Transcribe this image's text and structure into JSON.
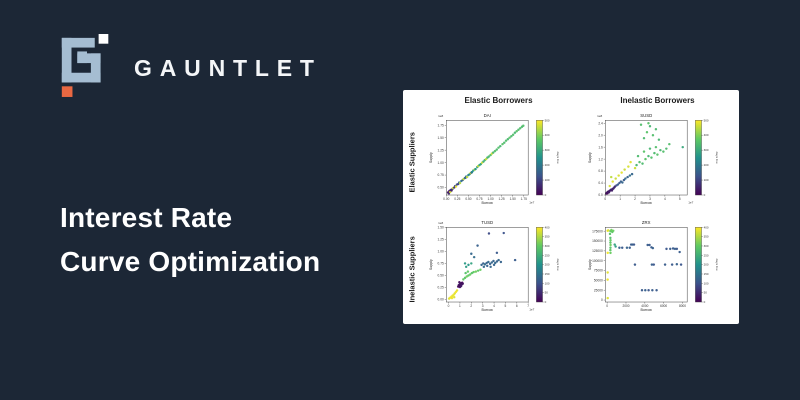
{
  "brand": {
    "name": "GAUNTLET",
    "logo_colors": {
      "mark": "#A5BDD2",
      "dot": "#FFFFFF",
      "accent": "#E96842"
    }
  },
  "title": {
    "line1": "Interest Rate",
    "line2": "Curve Optimization"
  },
  "theme": {
    "background": "#1C2736",
    "panel": "#FFFFFF",
    "text": "#FFFFFF"
  },
  "figure": {
    "col_headers": [
      "Elastic Borrowers",
      "Inelastic Borrowers"
    ],
    "row_headers": [
      "Elastic Suppliers",
      "Inelastic Suppliers"
    ]
  },
  "chart_data": [
    {
      "id": "dai",
      "type": "scatter",
      "title": "DAI",
      "row": "Elastic Suppliers",
      "col": "Elastic Borrowers",
      "xlabel": "Borrow",
      "ylabel": "Supply",
      "x_offset_label": "1e7",
      "y_offset_label": "1e8",
      "xlim": [
        0,
        1.85
      ],
      "ylim": [
        0.35,
        1.85
      ],
      "xticks": [
        "0.00",
        "0.25",
        "0.50",
        "0.75",
        "1.00",
        "1.25",
        "1.50",
        "1.75"
      ],
      "yticks": [
        "0.50",
        "0.75",
        "1.00",
        "1.25",
        "1.50",
        "1.75"
      ],
      "colorbar": {
        "label": "days live",
        "range": [
          0,
          500
        ],
        "ticks": [
          "0",
          "100",
          "200",
          "300",
          "400",
          "500"
        ]
      },
      "points": [
        [
          0.04,
          0.4,
          30
        ],
        [
          0.06,
          0.38,
          60
        ],
        [
          0.07,
          0.43,
          20
        ],
        [
          0.09,
          0.41,
          470
        ],
        [
          0.1,
          0.45,
          80
        ],
        [
          0.12,
          0.44,
          40
        ],
        [
          0.14,
          0.47,
          90
        ],
        [
          0.15,
          0.49,
          460
        ],
        [
          0.18,
          0.5,
          70
        ],
        [
          0.2,
          0.53,
          100
        ],
        [
          0.22,
          0.52,
          480
        ],
        [
          0.24,
          0.56,
          120
        ],
        [
          0.27,
          0.57,
          90
        ],
        [
          0.29,
          0.6,
          160
        ],
        [
          0.31,
          0.59,
          440
        ],
        [
          0.34,
          0.63,
          180
        ],
        [
          0.37,
          0.65,
          150
        ],
        [
          0.39,
          0.67,
          460
        ],
        [
          0.42,
          0.69,
          200
        ],
        [
          0.44,
          0.7,
          120
        ],
        [
          0.45,
          0.72,
          170
        ],
        [
          0.47,
          0.71,
          450
        ],
        [
          0.5,
          0.75,
          220
        ],
        [
          0.53,
          0.77,
          240
        ],
        [
          0.55,
          0.79,
          470
        ],
        [
          0.57,
          0.8,
          140
        ],
        [
          0.58,
          0.81,
          230
        ],
        [
          0.61,
          0.84,
          260
        ],
        [
          0.64,
          0.86,
          450
        ],
        [
          0.66,
          0.87,
          250
        ],
        [
          0.7,
          0.91,
          280
        ],
        [
          0.72,
          0.93,
          460
        ],
        [
          0.75,
          0.95,
          300
        ],
        [
          0.78,
          0.97,
          290
        ],
        [
          0.81,
          1.0,
          470
        ],
        [
          0.84,
          1.02,
          310
        ],
        [
          0.87,
          1.05,
          330
        ],
        [
          0.9,
          1.07,
          460
        ],
        [
          0.93,
          1.1,
          320
        ],
        [
          0.96,
          1.12,
          340
        ],
        [
          1.0,
          1.15,
          350
        ],
        [
          1.03,
          1.18,
          460
        ],
        [
          1.06,
          1.2,
          330
        ],
        [
          1.1,
          1.23,
          360
        ],
        [
          1.14,
          1.26,
          340
        ],
        [
          1.18,
          1.3,
          350
        ],
        [
          1.22,
          1.33,
          330
        ],
        [
          1.27,
          1.37,
          360
        ],
        [
          1.31,
          1.4,
          340
        ],
        [
          1.35,
          1.44,
          350
        ],
        [
          1.39,
          1.47,
          330
        ],
        [
          1.43,
          1.5,
          360
        ],
        [
          1.47,
          1.53,
          340
        ],
        [
          1.51,
          1.56,
          350
        ],
        [
          1.55,
          1.6,
          330
        ],
        [
          1.59,
          1.63,
          360
        ],
        [
          1.63,
          1.66,
          340
        ],
        [
          1.67,
          1.69,
          350
        ],
        [
          1.71,
          1.72,
          340
        ],
        [
          1.74,
          1.74,
          350
        ]
      ]
    },
    {
      "id": "susd",
      "type": "scatter",
      "title": "SUSD",
      "row": "Elastic Suppliers",
      "col": "Inelastic Borrowers",
      "xlabel": "Borrow",
      "ylabel": "Supply",
      "x_offset_label": "1e7",
      "y_offset_label": "1e8",
      "xlim": [
        0,
        5.5
      ],
      "ylim": [
        0,
        2.5
      ],
      "xticks": [
        "0",
        "1",
        "2",
        "3",
        "4",
        "5"
      ],
      "yticks": [
        "0.0",
        "0.4",
        "0.8",
        "1.2",
        "1.6",
        "2.0",
        "2.4"
      ],
      "colorbar": {
        "label": "days live",
        "range": [
          0,
          500
        ],
        "ticks": [
          "0",
          "100",
          "200",
          "300",
          "400",
          "500"
        ]
      },
      "points": [
        [
          0.08,
          0.05,
          20
        ],
        [
          0.12,
          0.08,
          30
        ],
        [
          0.15,
          0.06,
          15
        ],
        [
          0.18,
          0.1,
          40
        ],
        [
          0.22,
          0.12,
          25
        ],
        [
          0.25,
          0.09,
          35
        ],
        [
          0.3,
          0.14,
          50
        ],
        [
          0.35,
          0.16,
          30
        ],
        [
          0.4,
          0.18,
          60
        ],
        [
          0.45,
          0.15,
          40
        ],
        [
          0.5,
          0.2,
          55
        ],
        [
          0.55,
          0.22,
          45
        ],
        [
          0.6,
          0.25,
          70
        ],
        [
          0.65,
          0.28,
          60
        ],
        [
          0.75,
          0.32,
          120
        ],
        [
          0.85,
          0.35,
          140
        ],
        [
          0.95,
          0.4,
          130
        ],
        [
          1.05,
          0.45,
          150
        ],
        [
          1.15,
          0.42,
          160
        ],
        [
          1.25,
          0.5,
          140
        ],
        [
          1.35,
          0.55,
          170
        ],
        [
          1.5,
          0.6,
          150
        ],
        [
          1.65,
          0.65,
          180
        ],
        [
          1.8,
          0.7,
          160
        ],
        [
          0.3,
          0.3,
          470
        ],
        [
          0.5,
          0.45,
          480
        ],
        [
          0.7,
          0.55,
          460
        ],
        [
          0.9,
          0.65,
          470
        ],
        [
          1.1,
          0.75,
          480
        ],
        [
          1.3,
          0.85,
          460
        ],
        [
          1.55,
          0.95,
          470
        ],
        [
          0.4,
          0.6,
          450
        ],
        [
          1.7,
          1.1,
          480
        ],
        [
          2.0,
          0.9,
          460
        ],
        [
          2.1,
          1.0,
          330
        ],
        [
          2.3,
          1.1,
          350
        ],
        [
          2.5,
          1.05,
          340
        ],
        [
          2.7,
          1.2,
          360
        ],
        [
          2.9,
          1.3,
          330
        ],
        [
          3.1,
          1.25,
          350
        ],
        [
          3.3,
          1.4,
          340
        ],
        [
          3.5,
          1.35,
          360
        ],
        [
          3.7,
          1.5,
          330
        ],
        [
          3.9,
          1.45,
          350
        ],
        [
          2.2,
          1.3,
          340
        ],
        [
          2.6,
          1.45,
          360
        ],
        [
          3.0,
          1.55,
          330
        ],
        [
          3.4,
          1.6,
          350
        ],
        [
          4.1,
          1.55,
          340
        ],
        [
          4.3,
          1.7,
          350
        ],
        [
          2.6,
          1.9,
          340
        ],
        [
          2.8,
          2.1,
          360
        ],
        [
          3.0,
          2.3,
          330
        ],
        [
          3.2,
          2.0,
          350
        ],
        [
          3.4,
          2.2,
          340
        ],
        [
          2.4,
          2.35,
          350
        ],
        [
          3.6,
          1.85,
          330
        ],
        [
          2.9,
          2.4,
          360
        ],
        [
          5.2,
          1.6,
          300
        ]
      ]
    },
    {
      "id": "tusd",
      "type": "scatter",
      "title": "TUSD",
      "row": "Inelastic Suppliers",
      "col": "Elastic Borrowers",
      "xlabel": "Borrow",
      "ylabel": "Supply",
      "x_offset_label": "1e7",
      "y_offset_label": "1e8",
      "xlim": [
        -0.2,
        7
      ],
      "ylim": [
        -0.05,
        1.5
      ],
      "xticks": [
        "0",
        "1",
        "2",
        "3",
        "4",
        "5",
        "6",
        "7"
      ],
      "yticks": [
        "0.00",
        "0.25",
        "0.50",
        "0.75",
        "1.00",
        "1.25",
        "1.50"
      ],
      "colorbar": {
        "label": "days live",
        "range": [
          0,
          400
        ],
        "ticks": [
          "0",
          "50",
          "100",
          "150",
          "200",
          "250",
          "300",
          "350",
          "400"
        ]
      },
      "points": [
        [
          0.05,
          0.02,
          380
        ],
        [
          0.15,
          0.04,
          390
        ],
        [
          0.25,
          0.06,
          395
        ],
        [
          0.35,
          0.08,
          385
        ],
        [
          0.45,
          0.1,
          390
        ],
        [
          0.55,
          0.13,
          380
        ],
        [
          0.65,
          0.16,
          395
        ],
        [
          0.75,
          0.19,
          385
        ],
        [
          0.3,
          0.03,
          390
        ],
        [
          0.5,
          0.05,
          380
        ],
        [
          0.85,
          0.27,
          15
        ],
        [
          0.9,
          0.3,
          25
        ],
        [
          0.95,
          0.28,
          10
        ],
        [
          1.0,
          0.32,
          30
        ],
        [
          1.05,
          0.3,
          20
        ],
        [
          1.1,
          0.34,
          15
        ],
        [
          1.15,
          0.31,
          25
        ],
        [
          1.2,
          0.35,
          10
        ],
        [
          1.0,
          0.26,
          20
        ],
        [
          1.1,
          0.28,
          30
        ],
        [
          0.95,
          0.36,
          15
        ],
        [
          1.25,
          0.33,
          20
        ],
        [
          1.3,
          0.42,
          300
        ],
        [
          1.45,
          0.45,
          290
        ],
        [
          1.6,
          0.48,
          310
        ],
        [
          1.75,
          0.5,
          295
        ],
        [
          1.9,
          0.52,
          305
        ],
        [
          2.05,
          0.55,
          290
        ],
        [
          2.2,
          0.57,
          300
        ],
        [
          2.4,
          0.58,
          310
        ],
        [
          2.6,
          0.6,
          295
        ],
        [
          2.8,
          0.62,
          305
        ],
        [
          1.5,
          0.55,
          285
        ],
        [
          1.7,
          0.58,
          300
        ],
        [
          1.55,
          0.68,
          220
        ],
        [
          1.75,
          0.72,
          210
        ],
        [
          2.0,
          0.75,
          230
        ],
        [
          1.45,
          0.75,
          215
        ],
        [
          2.9,
          0.72,
          130
        ],
        [
          3.05,
          0.75,
          120
        ],
        [
          3.2,
          0.73,
          140
        ],
        [
          3.35,
          0.76,
          125
        ],
        [
          3.5,
          0.78,
          135
        ],
        [
          3.65,
          0.74,
          120
        ],
        [
          3.8,
          0.77,
          130
        ],
        [
          3.95,
          0.8,
          125
        ],
        [
          4.1,
          0.76,
          135
        ],
        [
          4.25,
          0.79,
          120
        ],
        [
          4.4,
          0.82,
          130
        ],
        [
          4.6,
          0.78,
          125
        ],
        [
          3.1,
          0.68,
          135
        ],
        [
          3.4,
          0.7,
          120
        ],
        [
          3.7,
          0.68,
          130
        ],
        [
          4.0,
          0.72,
          125
        ],
        [
          3.55,
          1.37,
          90
        ],
        [
          4.85,
          1.38,
          100
        ],
        [
          2.55,
          1.12,
          120
        ],
        [
          4.25,
          0.97,
          110
        ],
        [
          5.85,
          0.82,
          115
        ],
        [
          2.25,
          0.88,
          140
        ],
        [
          2.0,
          0.95,
          130
        ]
      ]
    },
    {
      "id": "zrx",
      "type": "scatter",
      "title": "ZRX",
      "row": "Inelastic Suppliers",
      "col": "Inelastic Borrowers",
      "xlabel": "Borrow",
      "ylabel": "Supply",
      "x_offset_label": "",
      "y_offset_label": "",
      "xlim": [
        -200,
        8500
      ],
      "ylim": [
        -5000,
        185000
      ],
      "xticks": [
        "0",
        "2000",
        "4000",
        "6000",
        "8000"
      ],
      "yticks": [
        "0",
        "25000",
        "50000",
        "75000",
        "100000",
        "125000",
        "150000",
        "175000"
      ],
      "colorbar": {
        "label": "days live",
        "range": [
          0,
          400
        ],
        "ticks": [
          "0",
          "50",
          "100",
          "150",
          "200",
          "250",
          "300",
          "350",
          "400"
        ]
      },
      "points": [
        [
          50,
          176000,
          390
        ],
        [
          120,
          177000,
          380
        ],
        [
          60,
          120000,
          395
        ],
        [
          55,
          70000,
          385
        ],
        [
          50,
          52000,
          390
        ],
        [
          60,
          5000,
          380
        ],
        [
          350,
          175000,
          300
        ],
        [
          450,
          178000,
          310
        ],
        [
          550,
          173000,
          295
        ],
        [
          650,
          176000,
          305
        ],
        [
          300,
          168000,
          290
        ],
        [
          340,
          158000,
          280
        ],
        [
          355,
          152000,
          300
        ],
        [
          345,
          146000,
          290
        ],
        [
          360,
          140000,
          310
        ],
        [
          350,
          133000,
          285
        ],
        [
          340,
          127000,
          295
        ],
        [
          355,
          120000,
          305
        ],
        [
          800,
          141000,
          230
        ],
        [
          900,
          136000,
          220
        ],
        [
          2550,
          141000,
          110
        ],
        [
          2700,
          141000,
          120
        ],
        [
          2850,
          141000,
          105
        ],
        [
          4300,
          140000,
          115
        ],
        [
          4500,
          140000,
          110
        ],
        [
          1300,
          133000,
          120
        ],
        [
          1600,
          133000,
          110
        ],
        [
          2100,
          133000,
          125
        ],
        [
          2400,
          133000,
          115
        ],
        [
          4700,
          134000,
          110
        ],
        [
          4850,
          132000,
          120
        ],
        [
          6300,
          130000,
          105
        ],
        [
          6700,
          130000,
          115
        ],
        [
          7000,
          131000,
          110
        ],
        [
          7200,
          130000,
          120
        ],
        [
          7400,
          130000,
          105
        ],
        [
          7700,
          122000,
          115
        ],
        [
          2950,
          90000,
          110
        ],
        [
          4750,
          90000,
          120
        ],
        [
          4950,
          90000,
          105
        ],
        [
          6150,
          90000,
          115
        ],
        [
          6900,
          90000,
          110
        ],
        [
          7400,
          91000,
          120
        ],
        [
          7850,
          90000,
          105
        ],
        [
          3700,
          25000,
          110
        ],
        [
          4050,
          25000,
          120
        ],
        [
          4400,
          25000,
          105
        ],
        [
          4800,
          25000,
          115
        ],
        [
          5250,
          25000,
          110
        ]
      ]
    }
  ]
}
